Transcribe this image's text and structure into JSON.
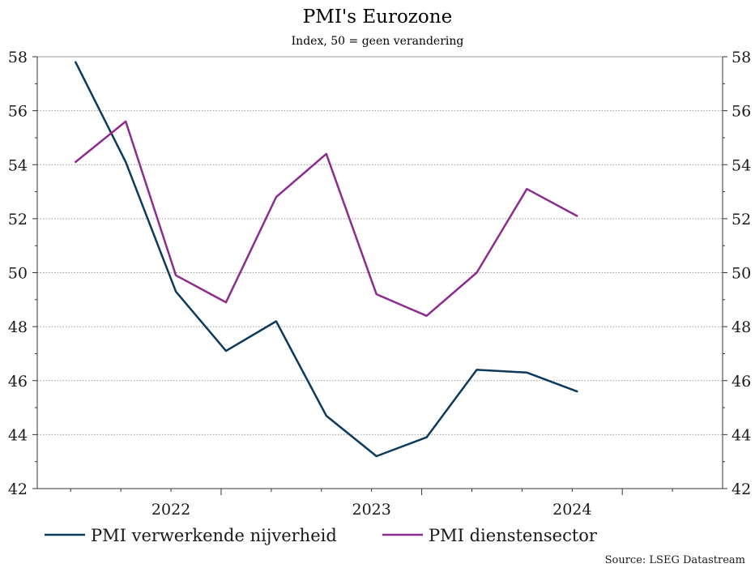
{
  "chart_data": {
    "type": "line",
    "title": "PMI's Eurozone",
    "subtitle": "Index, 50 = geen verandering",
    "source": "Source: LSEG Datastream",
    "x": [
      "2021-10",
      "2022-01",
      "2022-04",
      "2022-07",
      "2022-10",
      "2023-01",
      "2023-04",
      "2023-07",
      "2023-10",
      "2024-01",
      "2024-04",
      "2024-07"
    ],
    "x_tick_labels": [
      "2022",
      "2023",
      "2024"
    ],
    "ylim": [
      42,
      58
    ],
    "y_ticks": [
      42,
      44,
      46,
      48,
      50,
      52,
      54,
      56,
      58
    ],
    "grid": true,
    "legend_position": "bottom",
    "series": [
      {
        "name": "PMI verwerkende nijverheid",
        "color": "#0d3a5c",
        "values": [
          57.8,
          54.1,
          49.3,
          47.1,
          48.2,
          44.7,
          43.2,
          43.9,
          46.4,
          46.3,
          45.6,
          null
        ]
      },
      {
        "name": "PMI dienstensector",
        "color": "#8b2c8e",
        "values": [
          54.1,
          55.6,
          49.9,
          48.9,
          52.8,
          54.4,
          49.2,
          48.4,
          50.0,
          53.1,
          52.1,
          null
        ]
      }
    ]
  }
}
